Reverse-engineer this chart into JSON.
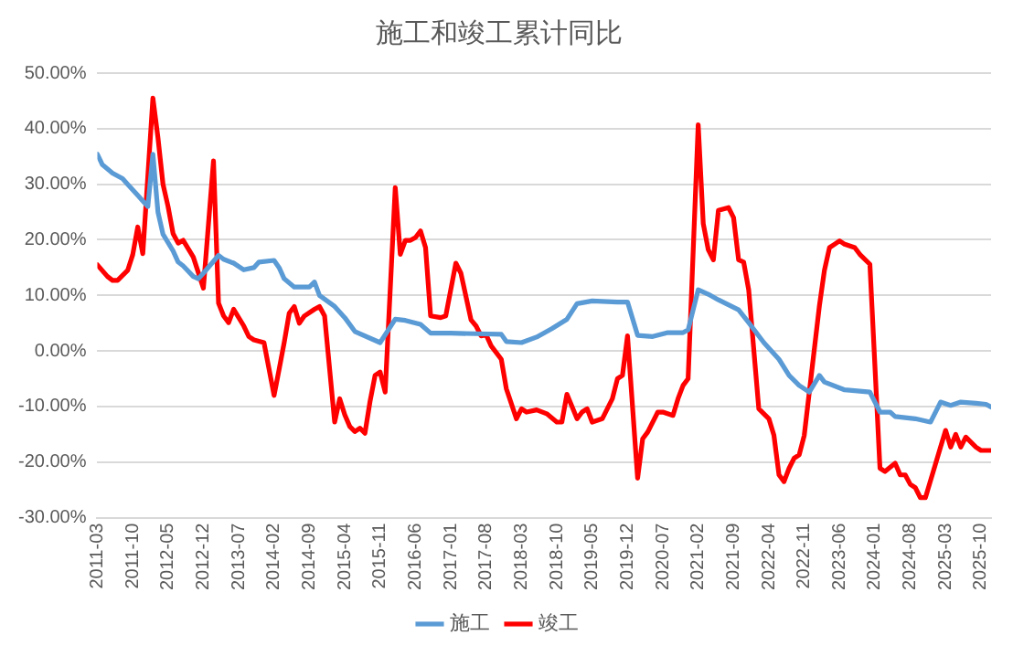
{
  "chart_data": {
    "type": "line",
    "title": "施工和竣工累计同比",
    "legend": "bottom",
    "grid": "y",
    "marker": "none",
    "line_style": "solid",
    "xlim": [
      "2011-03",
      "2025-12"
    ],
    "xticks": [
      "2011-03",
      "2011-10",
      "2012-05",
      "2012-12",
      "2013-07",
      "2014-02",
      "2014-09",
      "2015-04",
      "2015-11",
      "2016-06",
      "2017-01",
      "2017-08",
      "2018-03",
      "2018-10",
      "2019-05",
      "2019-12",
      "2020-07",
      "2021-02",
      "2021-09",
      "2022-04",
      "2022-11",
      "2023-06",
      "2024-01",
      "2024-08",
      "2025-03",
      "2025-10"
    ],
    "ylim": [
      -30,
      50
    ],
    "yticks": [
      {
        "value": -30,
        "label": "-30.00%"
      },
      {
        "value": -20,
        "label": "-20.00%"
      },
      {
        "value": -10,
        "label": "-10.00%"
      },
      {
        "value": 0,
        "label": "0.00%"
      },
      {
        "value": 10,
        "label": "10.00%"
      },
      {
        "value": 20,
        "label": "20.00%"
      },
      {
        "value": 30,
        "label": "30.00%"
      },
      {
        "value": 40,
        "label": "40.00%"
      },
      {
        "value": 50,
        "label": "50.00%"
      }
    ],
    "series": [
      {
        "name": "施工",
        "color": "#5b9bd5",
        "x": [
          "2011-03",
          "2011-04",
          "2011-06",
          "2011-08",
          "2011-09",
          "2011-11",
          "2011-12",
          "2012-01",
          "2012-02",
          "2012-03",
          "2012-04",
          "2012-06",
          "2012-07",
          "2012-08",
          "2012-10",
          "2012-11",
          "2012-12",
          "2013-03",
          "2013-04",
          "2013-06",
          "2013-08",
          "2013-10",
          "2013-11",
          "2014-02",
          "2014-03",
          "2014-04",
          "2014-06",
          "2014-09",
          "2014-10",
          "2014-11",
          "2015-02",
          "2015-04",
          "2015-06",
          "2015-11",
          "2016-02",
          "2016-04",
          "2016-07",
          "2016-09",
          "2017-01",
          "2017-06",
          "2017-11",
          "2017-12",
          "2018-03",
          "2018-06",
          "2018-09",
          "2018-12",
          "2019-02",
          "2019-05",
          "2019-10",
          "2019-12",
          "2020-02",
          "2020-05",
          "2020-08",
          "2020-11",
          "2020-12",
          "2021-02",
          "2021-04",
          "2021-06",
          "2021-10",
          "2021-12",
          "2022-03",
          "2022-06",
          "2022-08",
          "2022-10",
          "2022-12",
          "2023-02",
          "2023-03",
          "2023-07",
          "2023-12",
          "2024-02",
          "2024-04",
          "2024-05",
          "2024-09",
          "2024-12",
          "2025-02",
          "2025-04",
          "2025-06",
          "2025-09",
          "2025-11",
          "2025-12"
        ],
        "values": [
          35.4,
          33.5,
          32,
          31,
          30,
          28,
          27,
          26,
          35.4,
          25,
          21,
          18,
          16,
          15.3,
          13.4,
          13,
          14,
          17.2,
          16.5,
          15.8,
          14.6,
          15,
          16,
          16.3,
          15,
          13,
          11.5,
          11.5,
          12.4,
          10,
          8,
          6,
          3.5,
          1.5,
          5.7,
          5.5,
          4.8,
          3.2,
          3.2,
          3.1,
          3,
          1.7,
          1.5,
          2.5,
          4,
          5.7,
          8.5,
          9,
          8.8,
          8.8,
          2.8,
          2.6,
          3.3,
          3.3,
          3.8,
          11,
          10.2,
          9.2,
          7.4,
          5.1,
          1.5,
          -1.5,
          -4.4,
          -6.2,
          -7.4,
          -4.4,
          -5.6,
          -7,
          -7.4,
          -11,
          -11,
          -11.8,
          -12.2,
          -12.8,
          -9.2,
          -9.8,
          -9.2,
          -9.4,
          -9.6,
          -10.1
        ]
      },
      {
        "name": "竣工",
        "color": "#ff0000",
        "x": [
          "2011-03",
          "2011-05",
          "2011-06",
          "2011-07",
          "2011-09",
          "2011-10",
          "2011-11",
          "2011-12",
          "2012-02",
          "2012-03",
          "2012-04",
          "2012-05",
          "2012-06",
          "2012-07",
          "2012-08",
          "2012-10",
          "2012-12",
          "2013-02",
          "2013-03",
          "2013-04",
          "2013-05",
          "2013-06",
          "2013-08",
          "2013-09",
          "2013-10",
          "2013-12",
          "2014-02",
          "2014-03",
          "2014-04",
          "2014-05",
          "2014-06",
          "2014-07",
          "2014-08",
          "2014-10",
          "2014-11",
          "2014-12",
          "2015-02",
          "2015-03",
          "2015-04",
          "2015-05",
          "2015-06",
          "2015-07",
          "2015-08",
          "2015-09",
          "2015-10",
          "2015-11",
          "2015-12",
          "2016-02",
          "2016-03",
          "2016-04",
          "2016-05",
          "2016-06",
          "2016-07",
          "2016-08",
          "2016-09",
          "2016-11",
          "2016-12",
          "2017-02",
          "2017-03",
          "2017-05",
          "2017-06",
          "2017-07",
          "2017-08",
          "2017-09",
          "2017-11",
          "2017-12",
          "2018-02",
          "2018-03",
          "2018-04",
          "2018-06",
          "2018-08",
          "2018-10",
          "2018-11",
          "2018-12",
          "2019-02",
          "2019-03",
          "2019-04",
          "2019-05",
          "2019-07",
          "2019-09",
          "2019-10",
          "2019-11",
          "2019-12",
          "2020-02",
          "2020-03",
          "2020-04",
          "2020-06",
          "2020-07",
          "2020-09",
          "2020-10",
          "2020-11",
          "2020-12",
          "2021-02",
          "2021-03",
          "2021-04",
          "2021-05",
          "2021-06",
          "2021-08",
          "2021-09",
          "2021-10",
          "2021-11",
          "2021-12",
          "2022-02",
          "2022-04",
          "2022-05",
          "2022-06",
          "2022-07",
          "2022-08",
          "2022-09",
          "2022-10",
          "2022-11",
          "2023-02",
          "2023-03",
          "2023-04",
          "2023-05",
          "2023-06",
          "2023-07",
          "2023-09",
          "2023-10",
          "2023-12",
          "2024-02",
          "2024-03",
          "2024-05",
          "2024-06",
          "2024-07",
          "2024-08",
          "2024-09",
          "2024-10",
          "2024-11",
          "2025-02",
          "2025-03",
          "2025-04",
          "2025-05",
          "2025-06",
          "2025-07",
          "2025-09",
          "2025-10",
          "2025-12"
        ],
        "values": [
          15.5,
          13.4,
          12.7,
          12.7,
          14.5,
          17.3,
          22.3,
          17.5,
          45.5,
          38.4,
          30,
          26,
          21.1,
          19.4,
          19.9,
          16.9,
          11.3,
          34.2,
          8.6,
          6.3,
          5.1,
          7.5,
          4.5,
          2.6,
          2,
          1.5,
          -8,
          -3.3,
          1.5,
          6.8,
          8,
          5,
          6.3,
          7.5,
          8,
          6.3,
          -12.8,
          -8.6,
          -11.5,
          -13.6,
          -14.5,
          -13.9,
          -14.8,
          -9.1,
          -4.4,
          -3.8,
          -7.4,
          29.4,
          17.4,
          19.9,
          19.9,
          20.4,
          21.6,
          18.6,
          6.3,
          6,
          6.3,
          15.8,
          14,
          5.6,
          4.5,
          2.7,
          2.9,
          0.9,
          -1.5,
          -6.8,
          -12.2,
          -10.4,
          -11,
          -10.6,
          -11.3,
          -12.8,
          -12.8,
          -7.8,
          -12.2,
          -11,
          -10.4,
          -12.8,
          -12.2,
          -8.6,
          -5,
          -4.4,
          2.7,
          -22.9,
          -15.8,
          -14.6,
          -11,
          -11,
          -11.6,
          -8.6,
          -6.2,
          -5,
          40.7,
          22.9,
          18.2,
          16.4,
          25.3,
          25.8,
          24,
          16.4,
          16,
          11,
          -10.4,
          -12.2,
          -15.2,
          -22.3,
          -23.5,
          -21.1,
          -19.3,
          -18.7,
          -15.2,
          8.1,
          14.5,
          18.6,
          19.2,
          19.8,
          19.2,
          18.6,
          17.4,
          15.6,
          -21.1,
          -21.7,
          -20.2,
          -22.3,
          -22.3,
          -24,
          -24.6,
          -26.4,
          -26.4,
          -17.3,
          -14.3,
          -17.3,
          -15,
          -17.3,
          -15.5,
          -17.3,
          -17.9,
          -17.9
        ]
      }
    ]
  }
}
